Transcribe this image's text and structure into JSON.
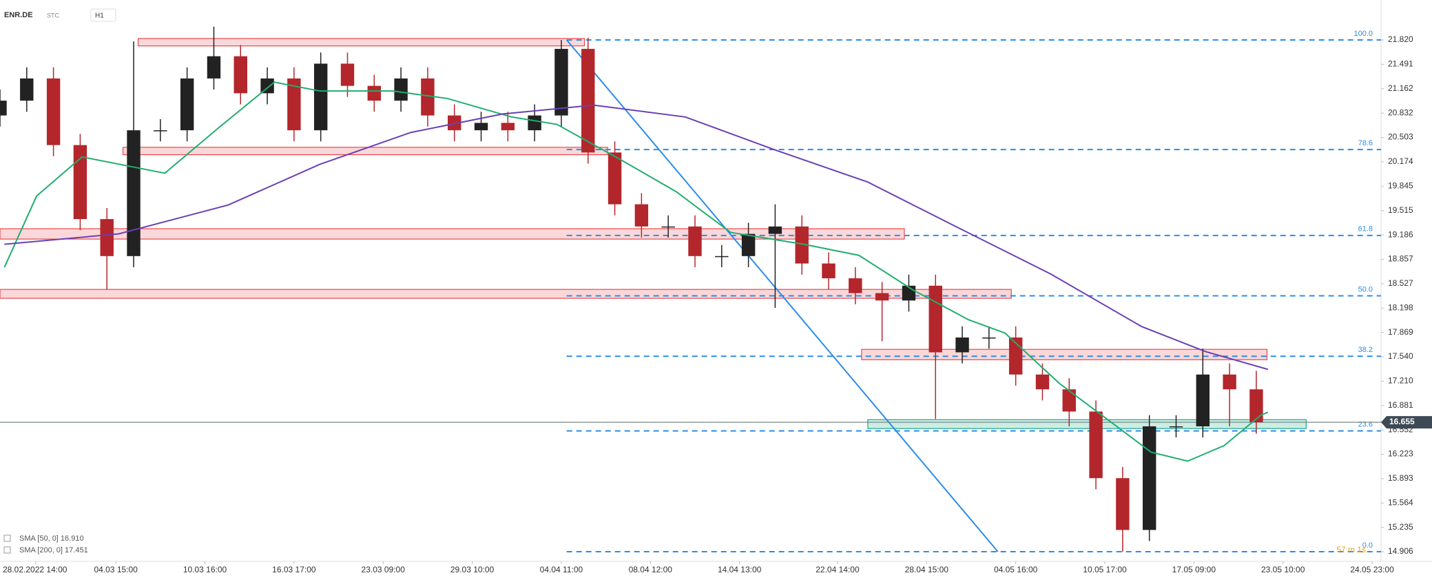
{
  "header": {
    "symbol": "ENR.DE",
    "market": "STC",
    "interval": "H1"
  },
  "countdown": "57 m 1s",
  "chart_data": {
    "type": "candlestick",
    "xlim": [
      0,
      155
    ],
    "ylim": [
      14.776,
      22.36
    ],
    "xticks": [
      {
        "value": 4,
        "label": "28.02.2022 14:00"
      },
      {
        "value": 13,
        "label": "04.03 15:00"
      },
      {
        "value": 23,
        "label": "10.03 16:00"
      },
      {
        "value": 33,
        "label": "16.03 17:00"
      },
      {
        "value": 43,
        "label": "23.03 09:00"
      },
      {
        "value": 53,
        "label": "29.03 10:00"
      },
      {
        "value": 63,
        "label": "04.04 11:00"
      },
      {
        "value": 73,
        "label": "08.04 12:00"
      },
      {
        "value": 83,
        "label": "14.04 13:00"
      },
      {
        "value": 94,
        "label": "22.04 14:00"
      },
      {
        "value": 104,
        "label": "28.04 15:00"
      },
      {
        "value": 114,
        "label": "04.05 16:00"
      },
      {
        "value": 124,
        "label": "10.05 17:00"
      },
      {
        "value": 134,
        "label": "17.05 09:00"
      },
      {
        "value": 144,
        "label": "23.05 10:00"
      },
      {
        "value": 154,
        "label": "24.05 23:00"
      }
    ],
    "yticks": [
      {
        "value": 21.82,
        "label": "21.820"
      },
      21.491,
      {
        "value": 21.162,
        "label": "21.162"
      },
      {
        "value": 20.832,
        "label": "20.832"
      },
      20.503,
      {
        "value": 20.174,
        "label": "20.174"
      },
      {
        "value": 19.845,
        "label": "19.845"
      },
      19.515,
      {
        "value": 19.186,
        "label": "19.186"
      },
      {
        "value": 18.857,
        "label": "18.857"
      },
      18.527,
      {
        "value": 18.198,
        "label": "18.198"
      },
      {
        "value": 17.869,
        "label": "17.869"
      },
      {
        "value": 17.54,
        "label": "17.540"
      },
      {
        "value": 17.21,
        "label": "17.210"
      },
      16.881,
      16.552,
      16.223,
      15.893,
      15.564,
      15.235,
      14.906
    ],
    "up_color": "#222222",
    "down_color": "#b3262b",
    "x": [
      0,
      3,
      6,
      9,
      12,
      15,
      18,
      21,
      24,
      27,
      30,
      33,
      36,
      39,
      42,
      45,
      48,
      51,
      54,
      57,
      60,
      63,
      66,
      69,
      72,
      75,
      78,
      81,
      84,
      87,
      90,
      93,
      96,
      99,
      102,
      105,
      108,
      111,
      114,
      117,
      120,
      123,
      126,
      129,
      132,
      135,
      138,
      141
    ],
    "open": [
      20.8,
      21.0,
      21.3,
      20.4,
      19.4,
      18.9,
      20.6,
      20.6,
      21.3,
      21.6,
      21.1,
      21.3,
      20.6,
      21.5,
      21.2,
      21.0,
      21.3,
      20.8,
      20.6,
      20.7,
      20.6,
      20.8,
      21.7,
      20.3,
      19.6,
      19.3,
      19.3,
      18.9,
      18.9,
      19.2,
      19.3,
      18.8,
      18.6,
      18.4,
      18.3,
      18.5,
      17.6,
      17.8,
      17.8,
      17.3,
      17.1,
      16.8,
      15.9,
      15.2,
      16.6,
      16.6,
      17.3,
      17.1
    ],
    "high": [
      21.15,
      21.45,
      21.45,
      20.55,
      19.55,
      21.8,
      20.75,
      21.45,
      22.0,
      21.75,
      21.45,
      21.45,
      21.65,
      21.65,
      21.35,
      21.45,
      21.45,
      20.95,
      20.85,
      20.85,
      20.95,
      21.82,
      21.85,
      20.45,
      19.75,
      19.45,
      19.45,
      19.05,
      19.35,
      19.6,
      19.45,
      18.95,
      18.75,
      18.55,
      18.65,
      18.65,
      17.95,
      17.95,
      17.95,
      17.45,
      17.25,
      16.95,
      16.05,
      16.75,
      16.75,
      17.65,
      17.45,
      17.35
    ],
    "low": [
      20.65,
      20.85,
      20.25,
      19.25,
      18.45,
      18.75,
      20.45,
      20.45,
      21.15,
      20.95,
      20.95,
      20.45,
      20.45,
      21.05,
      20.85,
      20.85,
      20.65,
      20.45,
      20.45,
      20.45,
      20.45,
      20.65,
      20.15,
      19.45,
      19.15,
      19.15,
      18.75,
      18.75,
      18.75,
      18.2,
      18.65,
      18.45,
      18.25,
      17.75,
      18.15,
      16.7,
      17.45,
      17.65,
      17.15,
      16.95,
      16.6,
      15.75,
      14.906,
      15.05,
      16.45,
      16.45,
      16.6,
      16.5
    ],
    "close": [
      21.0,
      21.3,
      20.4,
      19.4,
      18.9,
      20.6,
      20.6,
      21.3,
      21.6,
      21.1,
      21.3,
      20.6,
      21.5,
      21.2,
      21.0,
      21.3,
      20.8,
      20.6,
      20.7,
      20.6,
      20.8,
      21.7,
      20.3,
      19.6,
      19.3,
      19.3,
      18.9,
      18.9,
      19.2,
      19.3,
      18.8,
      18.6,
      18.4,
      18.3,
      18.5,
      17.6,
      17.8,
      17.8,
      17.3,
      17.1,
      16.8,
      15.9,
      15.2,
      16.6,
      16.6,
      17.3,
      17.1,
      16.655
    ],
    "series": [
      {
        "name": "SMA [50, 0] 16.910",
        "color": "#1fae6e",
        "x": [
          0.5,
          4.1,
          9.2,
          18.5,
          24.6,
          30.8,
          35.9,
          44.1,
          50.2,
          57.4,
          62.5,
          69.7,
          75.9,
          82,
          90.2,
          96.4,
          102.5,
          108.7,
          112.8,
          118.9,
          125.1,
          129.2,
          133.3,
          137.4,
          141.5,
          142.3
        ],
        "values": [
          18.75,
          19.71,
          20.24,
          20.02,
          20.64,
          21.25,
          21.13,
          21.13,
          21.03,
          20.78,
          20.68,
          20.2,
          19.77,
          19.22,
          19.06,
          18.91,
          18.44,
          18.04,
          17.86,
          17.18,
          16.62,
          16.25,
          16.13,
          16.34,
          16.75,
          16.79
        ]
      },
      {
        "name": "SMA [200, 0] 17.451",
        "color": "#6a3fb5",
        "x": [
          0.5,
          13.3,
          25.6,
          35.9,
          46.1,
          56.4,
          66.6,
          76.9,
          87.1,
          97.4,
          107.6,
          117.9,
          128.1,
          135.3,
          142.3
        ],
        "values": [
          19.06,
          19.2,
          19.59,
          20.14,
          20.57,
          20.82,
          20.94,
          20.78,
          20.33,
          19.9,
          19.28,
          18.66,
          17.95,
          17.61,
          17.37
        ]
      }
    ],
    "zones": [
      {
        "x": [
          15.5,
          65.6
        ],
        "price": [
          21.84,
          21.74
        ],
        "color": "#e8474c"
      },
      {
        "x": [
          13.8,
          68.2
        ],
        "price": [
          20.37,
          20.27
        ],
        "color": "#e8474c"
      },
      {
        "x": [
          0,
          101.5
        ],
        "price": [
          19.27,
          19.13
        ],
        "color": "#e8474c"
      },
      {
        "x": [
          0,
          113.5
        ],
        "price": [
          18.45,
          18.33
        ],
        "color": "#e8474c"
      },
      {
        "x": [
          96.7,
          142.2
        ],
        "price": [
          17.64,
          17.5
        ],
        "color": "#e8474c"
      },
      {
        "x": [
          97.4,
          146.6
        ],
        "price": [
          16.69,
          16.57
        ],
        "color": "#1aa88a"
      }
    ],
    "fib_x": [
      63.6,
      155
    ],
    "fib_levels": [
      {
        "label": "100.0",
        "price": 21.82
      },
      {
        "label": "78.6",
        "price": 20.34
      },
      {
        "label": "61.8",
        "price": 19.179
      },
      {
        "label": "50.0",
        "price": 18.363
      },
      {
        "label": "38.2",
        "price": 17.547
      },
      {
        "label": "23.6",
        "price": 16.538
      },
      {
        "label": "0.0",
        "price": 14.906
      }
    ],
    "trend_line": {
      "x": [
        63.6,
        112
      ],
      "price": [
        21.82,
        14.906
      ]
    },
    "last_price": 16.655
  }
}
